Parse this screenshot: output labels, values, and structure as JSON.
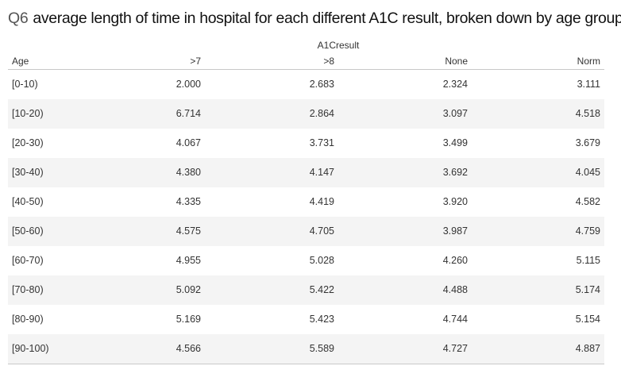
{
  "title": {
    "prefix": "Q6",
    "text": "average length of time in hospital for each different A1C result, broken down by age group"
  },
  "chart_data": {
    "type": "table",
    "title": "Q6 average length of time in hospital for each different A1C result, broken down by age group",
    "column_group": "A1Cresult",
    "row_header": "Age",
    "columns": [
      ">7",
      ">8",
      "None",
      "Norm"
    ],
    "rows": [
      {
        "age": "[0-10)",
        "values": [
          "2.000",
          "2.683",
          "2.324",
          "3.111"
        ]
      },
      {
        "age": "[10-20)",
        "values": [
          "6.714",
          "2.864",
          "3.097",
          "4.518"
        ]
      },
      {
        "age": "[20-30)",
        "values": [
          "4.067",
          "3.731",
          "3.499",
          "3.679"
        ]
      },
      {
        "age": "[30-40)",
        "values": [
          "4.380",
          "4.147",
          "3.692",
          "4.045"
        ]
      },
      {
        "age": "[40-50)",
        "values": [
          "4.335",
          "4.419",
          "3.920",
          "4.582"
        ]
      },
      {
        "age": "[50-60)",
        "values": [
          "4.575",
          "4.705",
          "3.987",
          "4.759"
        ]
      },
      {
        "age": "[60-70)",
        "values": [
          "4.955",
          "5.028",
          "4.260",
          "5.115"
        ]
      },
      {
        "age": "[70-80)",
        "values": [
          "5.092",
          "5.422",
          "4.488",
          "5.174"
        ]
      },
      {
        "age": "[80-90)",
        "values": [
          "5.169",
          "5.423",
          "4.744",
          "5.154"
        ]
      },
      {
        "age": "[90-100)",
        "values": [
          "4.566",
          "5.589",
          "4.727",
          "4.887"
        ]
      }
    ],
    "row_banding": true
  }
}
